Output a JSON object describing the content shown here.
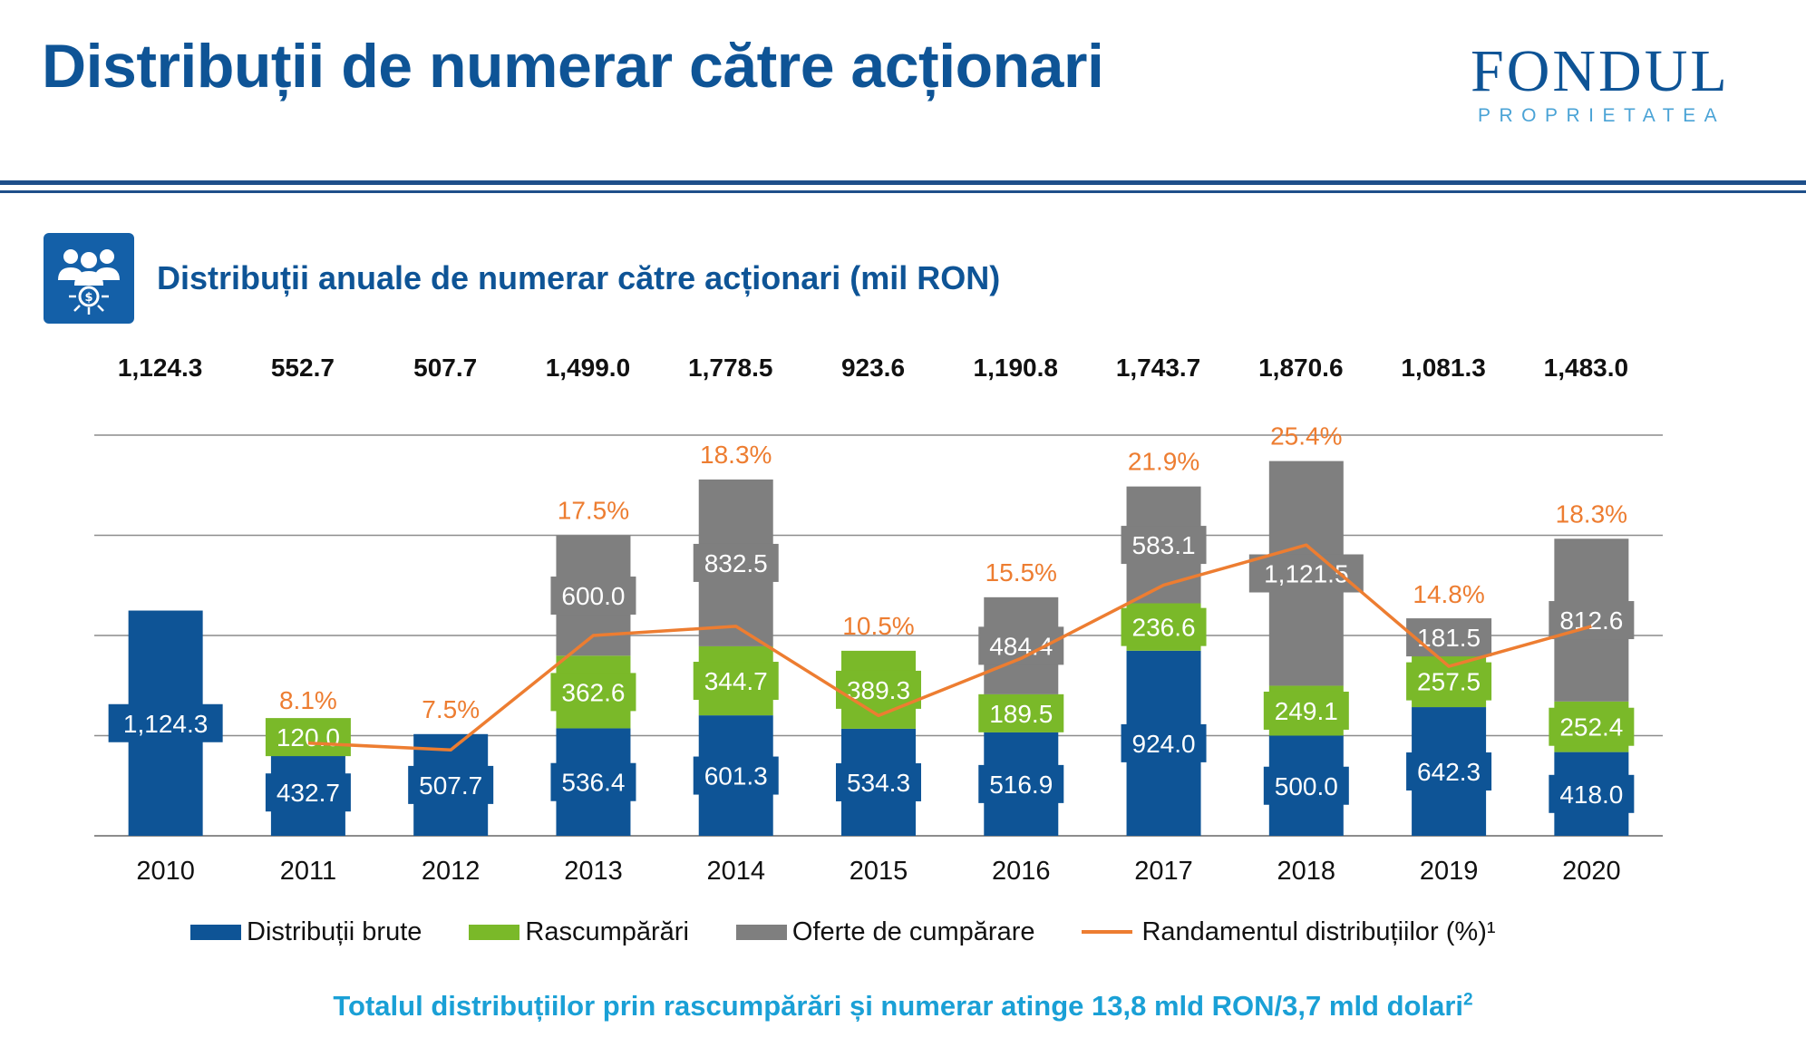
{
  "header": {
    "title": "Distribuții de numerar către acționari",
    "logo_word": "FONDUL",
    "logo_sub": "PROPRIETATEA",
    "logo_color": "#0e5496",
    "logo_accent": "#4aa3d6"
  },
  "section": {
    "icon": "people-money-icon",
    "subtitle": "Distribuții anuale de numerar către acționari (mil RON)"
  },
  "chart_data": {
    "type": "bar",
    "stacked": true,
    "categories": [
      "2010",
      "2011",
      "2012",
      "2013",
      "2014",
      "2015",
      "2016",
      "2017",
      "2018",
      "2019",
      "2020"
    ],
    "totals": [
      "1,124.3",
      "552.7",
      "507.7",
      "1,499.0",
      "1,778.5",
      "923.6",
      "1,190.8",
      "1,743.7",
      "1,870.6",
      "1,081.3",
      "1,483.0"
    ],
    "series": [
      {
        "name": "Distribuții brute",
        "color": "#0e5496",
        "values": [
          1124.3,
          432.7,
          507.7,
          536.4,
          601.3,
          534.3,
          516.9,
          924.0,
          500.0,
          642.3,
          418.0
        ],
        "labels": [
          "1,124.3",
          "432.7",
          "507.7",
          "536.4",
          "601.3",
          "534.3",
          "516.9",
          "924.0",
          "500.0",
          "642.3",
          "418.0"
        ]
      },
      {
        "name": "Rascumpărări",
        "color": "#7ab929",
        "values": [
          0,
          120.0,
          0,
          362.6,
          344.7,
          389.3,
          189.5,
          236.6,
          249.1,
          257.5,
          252.4
        ],
        "labels": [
          "",
          "120.0",
          "",
          "362.6",
          "344.7",
          "389.3",
          "189.5",
          "236.6",
          "249.1",
          "257.5",
          "252.4"
        ]
      },
      {
        "name": "Oferte de cumpărare",
        "color": "#7f7f7f",
        "values": [
          0,
          0,
          0,
          600.0,
          832.5,
          0,
          484.4,
          583.1,
          1121.5,
          181.5,
          812.6
        ],
        "labels": [
          "",
          "",
          "",
          "600.0",
          "832.5",
          "",
          "484.4",
          "583.1",
          "1,121.5",
          "181.5",
          "812.6"
        ]
      }
    ],
    "line": {
      "name": "Randamentul distribuțiilor (%)¹",
      "color": "#ed7d31",
      "values": [
        null,
        8.1,
        7.5,
        17.5,
        18.3,
        10.5,
        15.5,
        21.9,
        25.4,
        14.8,
        18.3
      ],
      "labels": [
        "",
        "8.1%",
        "7.5%",
        "17.5%",
        "18.3%",
        "10.5%",
        "15.5%",
        "21.9%",
        "25.4%",
        "14.8%",
        "18.3%"
      ]
    },
    "ylim": [
      0,
      2000
    ],
    "line_ylim": [
      0,
      35
    ],
    "grid": true,
    "legend_position": "bottom"
  },
  "footer": {
    "text": "Totalul distribuțiilor prin rascumpărări și numerar atinge 13,8 mld RON/3,7 mld dolari",
    "sup": "2"
  }
}
